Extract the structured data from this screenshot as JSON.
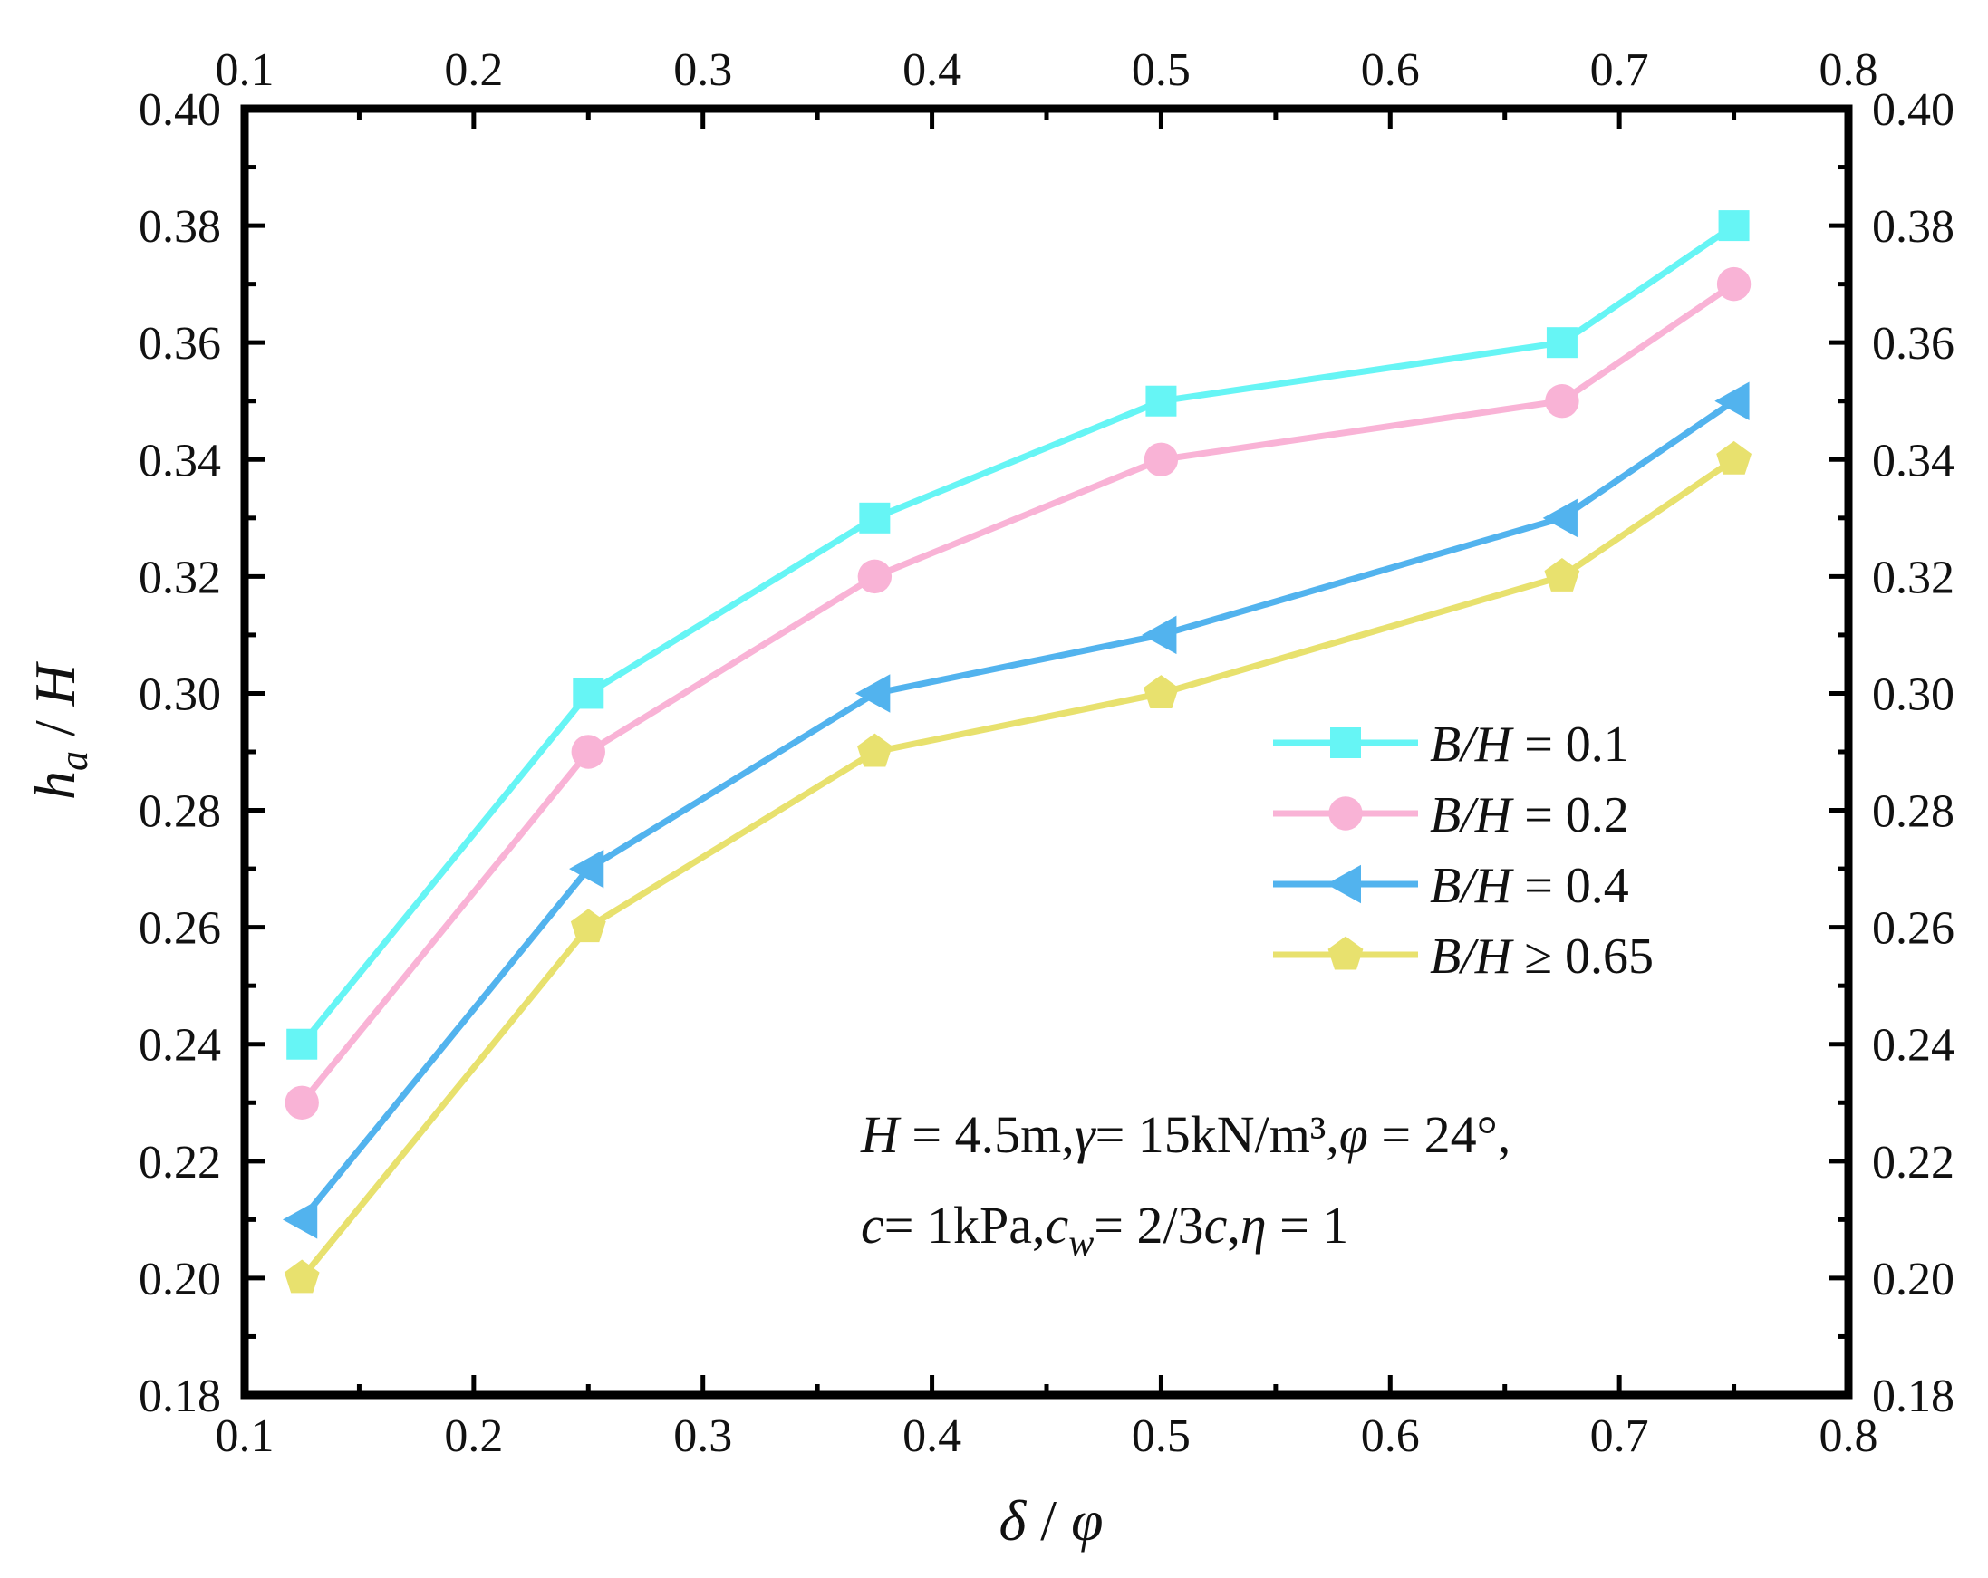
{
  "chart_data": {
    "type": "line",
    "xlabel": {
      "main": "δ",
      "slash": " / ",
      "second": "φ"
    },
    "ylabel": {
      "main": "h",
      "sub": "a",
      "slash": " / ",
      "second": "H"
    },
    "xlim": [
      0.1,
      0.8
    ],
    "ylim": [
      0.18,
      0.4
    ],
    "x_ticks": [
      "0.1",
      "0.2",
      "0.3",
      "0.4",
      "0.5",
      "0.6",
      "0.7",
      "0.8"
    ],
    "y_ticks": [
      "0.18",
      "0.20",
      "0.22",
      "0.24",
      "0.26",
      "0.28",
      "0.30",
      "0.32",
      "0.34",
      "0.36",
      "0.38",
      "0.40"
    ],
    "x": [
      0.125,
      0.25,
      0.375,
      0.5,
      0.675,
      0.75
    ],
    "grid": false,
    "mirror_axes": true,
    "legend_position": "right-middle",
    "series": [
      {
        "name": "B/H = 0.1",
        "label_italic": "B/H",
        "label_rest": " = 0.1",
        "marker": "square",
        "color": "#66F5F5",
        "values": [
          0.24,
          0.3,
          0.33,
          0.35,
          0.36,
          0.38
        ]
      },
      {
        "name": "B/H = 0.2",
        "label_italic": "B/H",
        "label_rest": " = 0.2",
        "marker": "circle",
        "color": "#F9B3D6",
        "values": [
          0.23,
          0.29,
          0.32,
          0.34,
          0.35,
          0.37
        ]
      },
      {
        "name": "B/H = 0.4",
        "label_italic": "B/H",
        "label_rest": " = 0.4",
        "marker": "triangle-left",
        "color": "#52B3EE",
        "values": [
          0.21,
          0.27,
          0.3,
          0.31,
          0.33,
          0.35
        ]
      },
      {
        "name": "B/H ≥ 0.65",
        "label_italic": "B/H",
        "label_rest": " ≥ 0.65",
        "marker": "pentagon",
        "color": "#E8E16E",
        "values": [
          0.2,
          0.26,
          0.29,
          0.3,
          0.32,
          0.34
        ]
      }
    ],
    "annotation": {
      "line1": [
        {
          "t": "H",
          "i": true
        },
        {
          "t": " = 4.5m,",
          "i": false
        },
        {
          "t": "γ",
          "i": true
        },
        {
          "t": "= 15kN/m³,",
          "i": false
        },
        {
          "t": "φ",
          "i": true
        },
        {
          "t": " = 24°,",
          "i": false
        }
      ],
      "line2": [
        {
          "t": "c",
          "i": true
        },
        {
          "t": "= 1kPa,",
          "i": false
        },
        {
          "t": "c",
          "i": true
        },
        {
          "t": "w",
          "i": true,
          "sub": true
        },
        {
          "t": "= 2/3",
          "i": false
        },
        {
          "t": "c",
          "i": true
        },
        {
          "t": ",",
          "i": false
        },
        {
          "t": "η",
          "i": true
        },
        {
          "t": " = 1",
          "i": false
        }
      ]
    }
  }
}
